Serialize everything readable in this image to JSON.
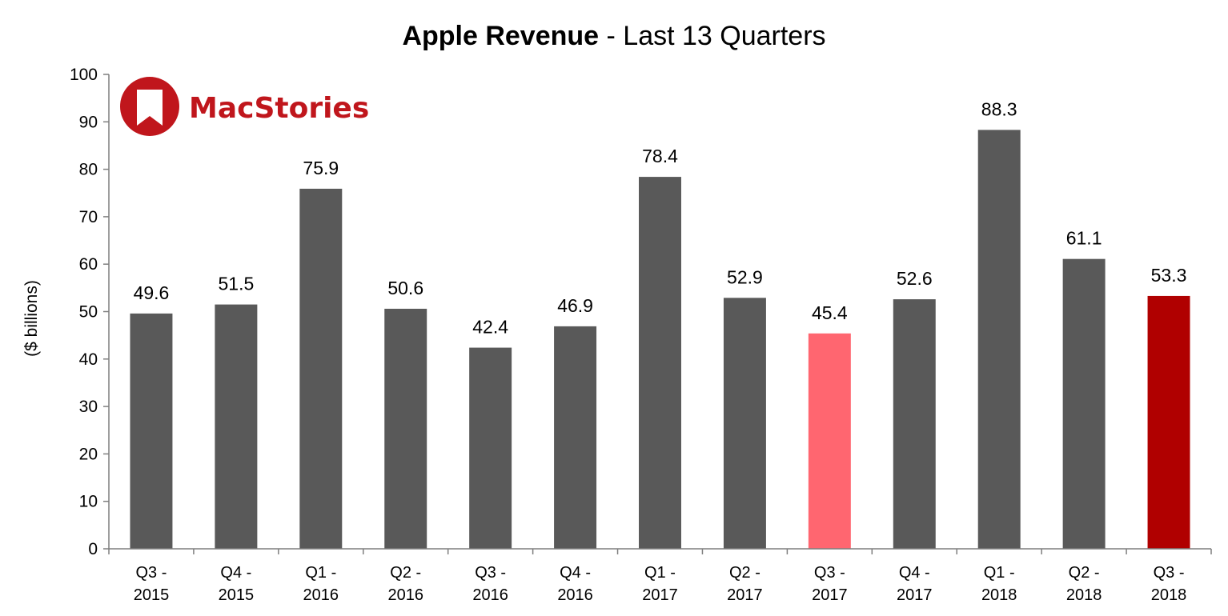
{
  "chart_data": {
    "type": "bar",
    "title_bold": "Apple Revenue",
    "title_rest": " - Last 13 Quarters",
    "ylabel": "($ billions)",
    "xlabel": "",
    "ylim": [
      0,
      100
    ],
    "yticks": [
      0,
      10,
      20,
      30,
      40,
      50,
      60,
      70,
      80,
      90,
      100
    ],
    "grid": false,
    "categories": [
      [
        "Q3 -",
        "2015"
      ],
      [
        "Q4 -",
        "2015"
      ],
      [
        "Q1 -",
        "2016"
      ],
      [
        "Q2 -",
        "2016"
      ],
      [
        "Q3 -",
        "2016"
      ],
      [
        "Q4 -",
        "2016"
      ],
      [
        "Q1 -",
        "2017"
      ],
      [
        "Q2 -",
        "2017"
      ],
      [
        "Q3 -",
        "2017"
      ],
      [
        "Q4 -",
        "2017"
      ],
      [
        "Q1 -",
        "2018"
      ],
      [
        "Q2 -",
        "2018"
      ],
      [
        "Q3 -",
        "2018"
      ]
    ],
    "values": [
      49.6,
      51.5,
      75.9,
      50.6,
      42.4,
      46.9,
      78.4,
      52.9,
      45.4,
      52.6,
      88.3,
      61.1,
      53.3
    ],
    "value_labels": [
      "49.6",
      "51.5",
      "75.9",
      "50.6",
      "42.4",
      "46.9",
      "78.4",
      "52.9",
      "45.4",
      "52.6",
      "88.3",
      "61.1",
      "53.3"
    ],
    "bar_colors": [
      "#595959",
      "#595959",
      "#595959",
      "#595959",
      "#595959",
      "#595959",
      "#595959",
      "#595959",
      "#ff6670",
      "#595959",
      "#595959",
      "#595959",
      "#b00000"
    ]
  },
  "logo": {
    "text": "MacStories",
    "color": "#c0161c",
    "icon": "bookmark-icon"
  }
}
